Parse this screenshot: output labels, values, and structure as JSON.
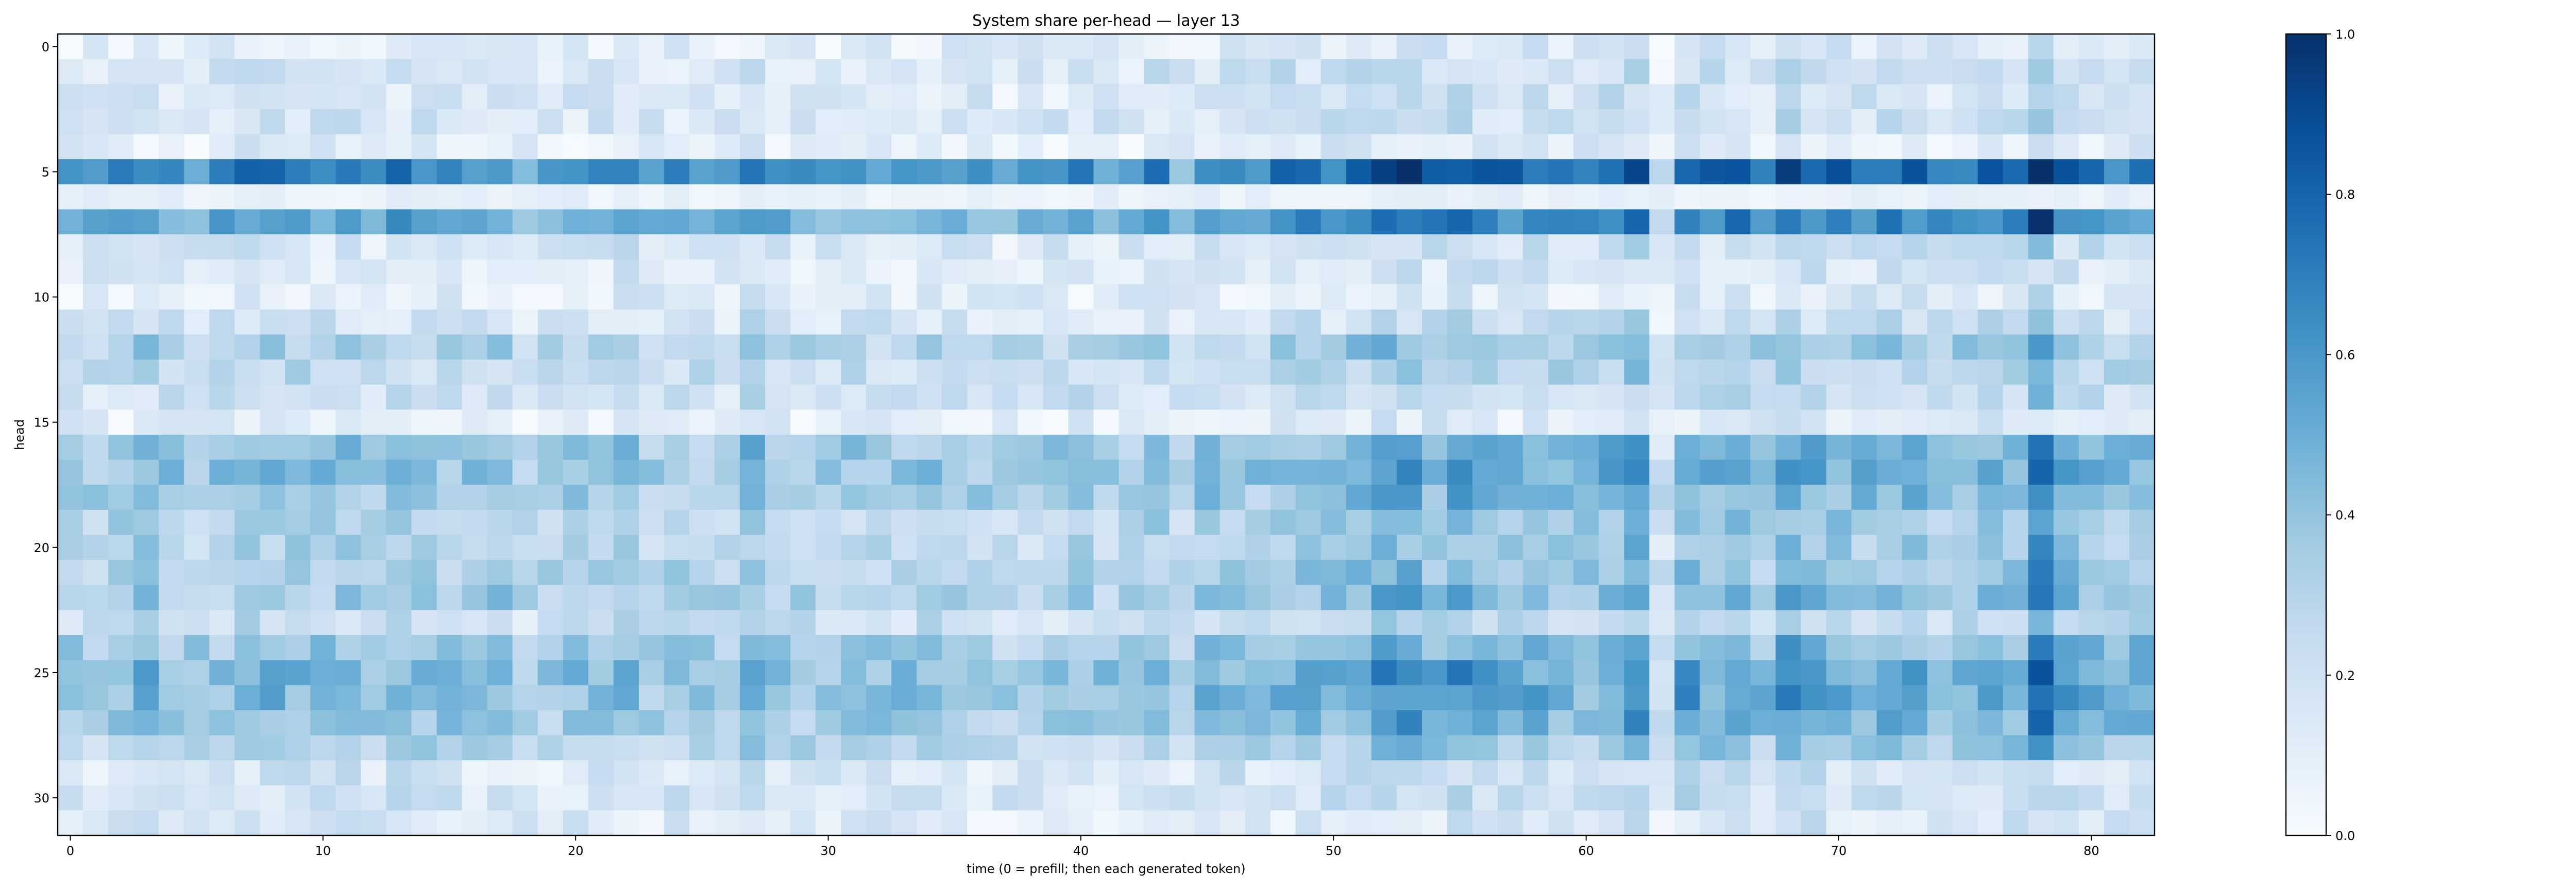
{
  "figure": {
    "title": "System share per-head — layer 13",
    "xlabel": "time (0 = prefill; then each generated token)",
    "ylabel": "head"
  },
  "colors": {
    "colormap": "Blues",
    "stops": [
      "#f7fbff",
      "#deebf7",
      "#c6dbef",
      "#9ecae1",
      "#6baed6",
      "#4292c6",
      "#2171b5",
      "#08519c",
      "#08306b"
    ],
    "axes_edge": "#000000",
    "background": "#ffffff"
  },
  "chart_data": {
    "type": "heatmap",
    "title": "System share per-head — layer 13",
    "xlabel": "time (0 = prefill; then each generated token)",
    "ylabel": "head",
    "xlim": [
      -0.5,
      82.5
    ],
    "ylim": [
      31.5,
      -0.5
    ],
    "x_ticks": [
      0,
      10,
      20,
      30,
      40,
      50,
      60,
      70,
      80
    ],
    "y_ticks": [
      0,
      5,
      10,
      15,
      20,
      25,
      30
    ],
    "n_heads": 32,
    "n_times": 83,
    "colorbar": {
      "range": [
        0.0,
        1.0
      ],
      "ticks": [
        "0.0",
        "0.2",
        "0.4",
        "0.6",
        "0.8",
        "1.0"
      ]
    },
    "row_mean": [
      0.13,
      0.2,
      0.17,
      0.18,
      0.12,
      0.7,
      0.08,
      0.58,
      0.18,
      0.15,
      0.13,
      0.2,
      0.34,
      0.27,
      0.22,
      0.12,
      0.42,
      0.45,
      0.4,
      0.33,
      0.32,
      0.35,
      0.38,
      0.25,
      0.4,
      0.48,
      0.46,
      0.42,
      0.33,
      0.18,
      0.2,
      0.15
    ],
    "col_mean": [
      0.26,
      0.24,
      0.27,
      0.31,
      0.27,
      0.25,
      0.26,
      0.3,
      0.31,
      0.3,
      0.28,
      0.3,
      0.25,
      0.3,
      0.28,
      0.26,
      0.26,
      0.29,
      0.22,
      0.24,
      0.26,
      0.25,
      0.31,
      0.24,
      0.26,
      0.24,
      0.25,
      0.33,
      0.27,
      0.25,
      0.25,
      0.26,
      0.25,
      0.26,
      0.27,
      0.28,
      0.25,
      0.22,
      0.22,
      0.25,
      0.27,
      0.24,
      0.25,
      0.3,
      0.21,
      0.31,
      0.29,
      0.26,
      0.3,
      0.31,
      0.3,
      0.35,
      0.4,
      0.41,
      0.33,
      0.39,
      0.36,
      0.32,
      0.33,
      0.31,
      0.3,
      0.36,
      0.42,
      0.16,
      0.38,
      0.33,
      0.36,
      0.3,
      0.4,
      0.35,
      0.33,
      0.32,
      0.34,
      0.33,
      0.3,
      0.32,
      0.34,
      0.33,
      0.55,
      0.36,
      0.34,
      0.3,
      0.32
    ]
  }
}
